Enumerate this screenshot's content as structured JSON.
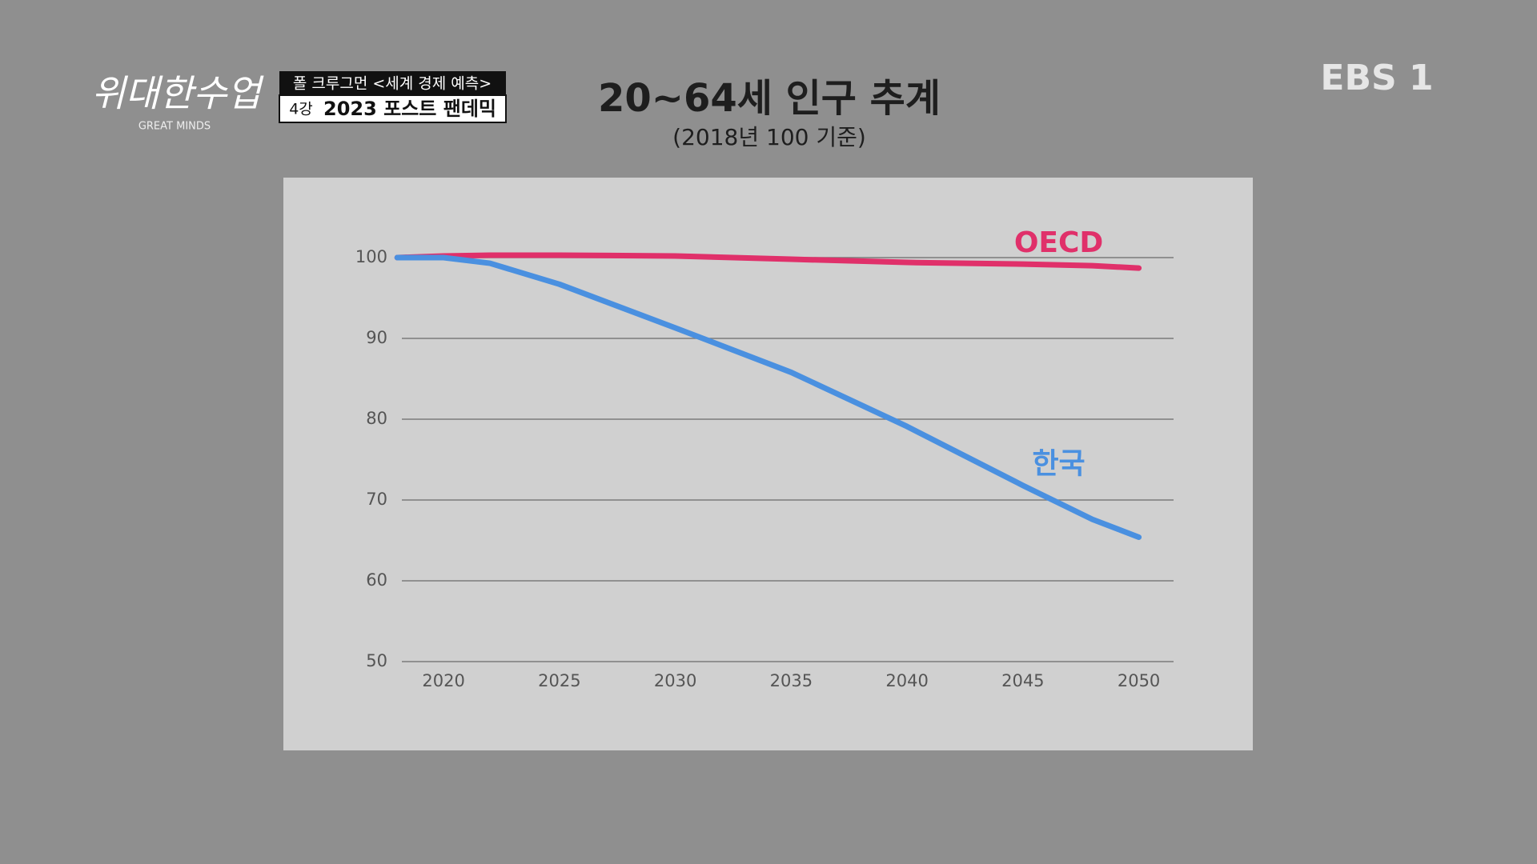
{
  "broadcast": {
    "logo": "위대한수업",
    "logo_sub": "GREAT MINDS",
    "program": "폴 크루그먼 <세계 경제 예측>",
    "lecture_no": "4강",
    "lecture_title": "2023 포스트 팬데믹",
    "channel": "EBS 1"
  },
  "chart_data": {
    "type": "line",
    "title": "20~64세 인구 추계",
    "subtitle": "(2018년 100 기준)",
    "x": [
      2018,
      2020,
      2022,
      2025,
      2030,
      2035,
      2040,
      2045,
      2048,
      2050
    ],
    "series": [
      {
        "name": "OECD",
        "color": "#e0306a",
        "values": [
          100,
          100.2,
          100.3,
          100.3,
          100.2,
          99.8,
          99.4,
          99.2,
          99.0,
          98.7
        ]
      },
      {
        "name": "한국",
        "color": "#4a90e0",
        "values": [
          100,
          100,
          99.3,
          96.7,
          91.3,
          85.8,
          79.1,
          71.8,
          67.6,
          65.4
        ]
      }
    ],
    "xlim": [
      2018.2,
      2051.5
    ],
    "xticks": [
      2020,
      2025,
      2030,
      2035,
      2040,
      2045,
      2050
    ],
    "ylim": [
      50,
      100
    ],
    "yticks": [
      50,
      60,
      70,
      80,
      90,
      100
    ],
    "grid": true
  }
}
